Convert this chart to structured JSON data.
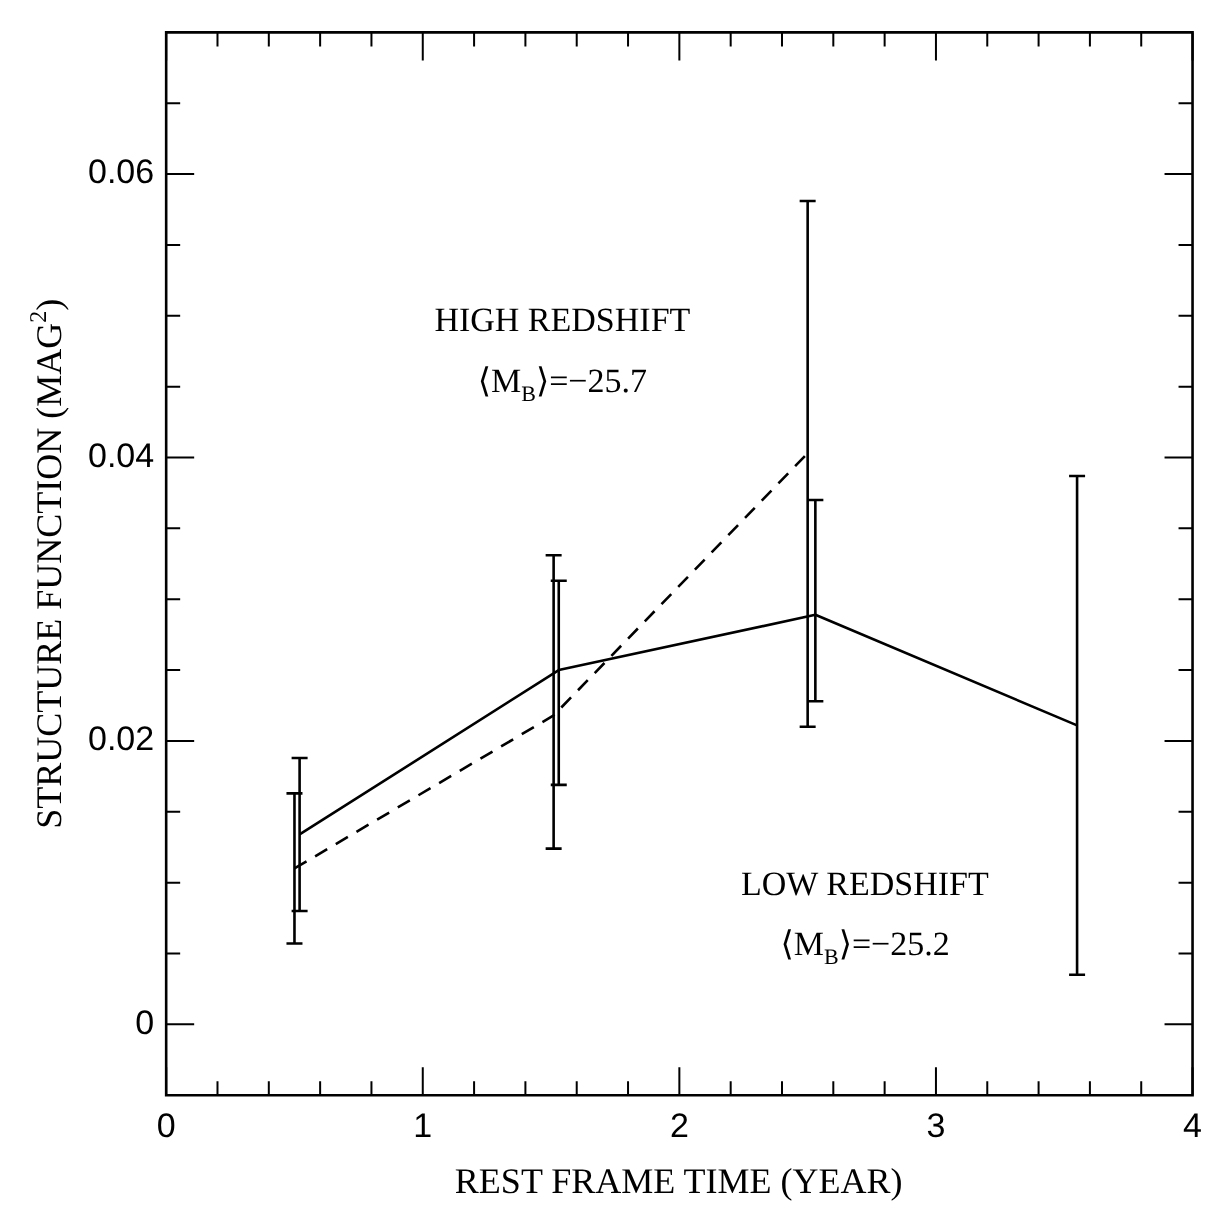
{
  "chart_data": {
    "type": "line",
    "xlabel": "REST FRAME TIME (YEAR)",
    "ylabel": "STRUCTURE FUNCTION (MAG$^{2}$)",
    "xlim": [
      0,
      4
    ],
    "ylim": [
      -0.005,
      0.07
    ],
    "xticks": [
      0,
      {
        "value": 0.2,
        "label": null
      },
      {
        "value": 0.4,
        "label": null
      },
      {
        "value": 0.6,
        "label": null
      },
      {
        "value": 0.8,
        "label": null
      },
      1,
      {
        "value": 1.2,
        "label": null
      },
      {
        "value": 1.4,
        "label": null
      },
      {
        "value": 1.6,
        "label": null
      },
      {
        "value": 1.8,
        "label": null
      },
      2,
      {
        "value": 2.2,
        "label": null
      },
      {
        "value": 2.4,
        "label": null
      },
      {
        "value": 2.6,
        "label": null
      },
      {
        "value": 2.8,
        "label": null
      },
      3,
      {
        "value": 3.2,
        "label": null
      },
      {
        "value": 3.4,
        "label": null
      },
      {
        "value": 3.6,
        "label": null
      },
      {
        "value": 3.8,
        "label": null
      },
      4
    ],
    "yticks": [
      0,
      {
        "value": 0.005,
        "label": null
      },
      {
        "value": 0.01,
        "label": null
      },
      {
        "value": 0.015,
        "label": null
      },
      0.02,
      {
        "value": 0.025,
        "label": null
      },
      {
        "value": 0.03,
        "label": null
      },
      {
        "value": 0.035,
        "label": null
      },
      0.04,
      {
        "value": 0.045,
        "label": null
      },
      {
        "value": 0.05,
        "label": null
      },
      {
        "value": 0.055,
        "label": null
      },
      0.06,
      {
        "value": 0.065,
        "label": null
      }
    ],
    "marker": "none",
    "series": [
      {
        "color": "#000000",
        "line_style": "dashed",
        "x": [
          0.5,
          1.51,
          2.5
        ],
        "values": [
          0.011,
          0.0218,
          0.0403
        ],
        "errors": [
          0.0053,
          [
            0.0124,
            0.0331
          ],
          [
            0.021,
            0.0581
          ]
        ]
      },
      {
        "color": "#000000",
        "line_style": "solid",
        "x": [
          0.52,
          1.53,
          2.53,
          3.55
        ],
        "values": [
          0.0134,
          0.025,
          0.0289,
          0.0211
        ],
        "errors": [
          0.0054,
          [
            0.0169,
            0.0313
          ],
          [
            0.0228,
            0.037
          ],
          0.0176
        ]
      }
    ],
    "annotations": [
      "HIGH REDSHIFT",
      "⟨M$_{B}$⟩=−25.7",
      "LOW REDSHIFT",
      "⟨M$_{B}$⟩=−25.2"
    ]
  }
}
